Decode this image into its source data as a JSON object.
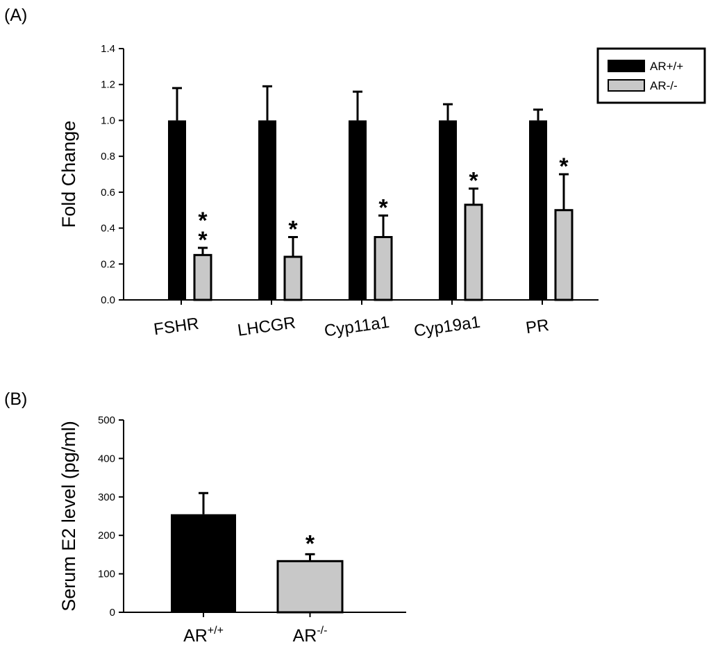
{
  "colors": {
    "wt": "#000000",
    "ko": "#c8c8c8",
    "axis": "#000000"
  },
  "chart_data": [
    {
      "type": "bar",
      "panel_label": "(A)",
      "ylabel": "Fold Change",
      "ylim": [
        0,
        1.4
      ],
      "yticks": [
        "0.0",
        "0.2",
        "0.4",
        "0.6",
        "0.8",
        "1.0",
        "1.2",
        "1.4"
      ],
      "categories": [
        "FSHR",
        "LHCGR",
        "Cyp11a1",
        "Cyp19a1",
        "PR"
      ],
      "series": [
        {
          "name": "AR+/+",
          "values": [
            1.0,
            1.0,
            1.0,
            1.0,
            1.0
          ],
          "errors": [
            0.18,
            0.19,
            0.16,
            0.09,
            0.06
          ]
        },
        {
          "name": "AR-/-",
          "values": [
            0.25,
            0.24,
            0.35,
            0.53,
            0.5
          ],
          "errors": [
            0.04,
            0.11,
            0.12,
            0.09,
            0.2
          ]
        }
      ],
      "annotations": [
        "* *",
        "*",
        "*",
        "*",
        "*"
      ],
      "legend_position": "top-right"
    },
    {
      "type": "bar",
      "panel_label": "(B)",
      "ylabel": "Serum E2 level (pg/ml)",
      "ylim": [
        0,
        500
      ],
      "yticks": [
        "0",
        "100",
        "200",
        "300",
        "400",
        "500"
      ],
      "categories": [
        {
          "base": "AR",
          "sup": "+/+"
        },
        {
          "base": "AR",
          "sup": "-/-"
        }
      ],
      "values": [
        255,
        133
      ],
      "errors": [
        55,
        18
      ],
      "annotations": [
        "",
        "*"
      ]
    }
  ]
}
